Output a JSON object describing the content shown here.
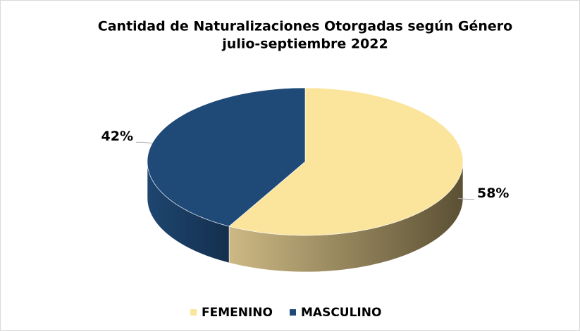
{
  "chart_data": {
    "type": "pie",
    "title": "Cantidad de Naturalizaciones Otorgadas según Género",
    "subtitle": "julio-septiembre 2022",
    "categories": [
      "FEMENINO",
      "MASCULINO"
    ],
    "values": [
      58,
      42
    ],
    "value_labels": [
      "58%",
      "42%"
    ],
    "colors": [
      "#fbe49b",
      "#1f4a78"
    ],
    "legend": "bottom"
  }
}
